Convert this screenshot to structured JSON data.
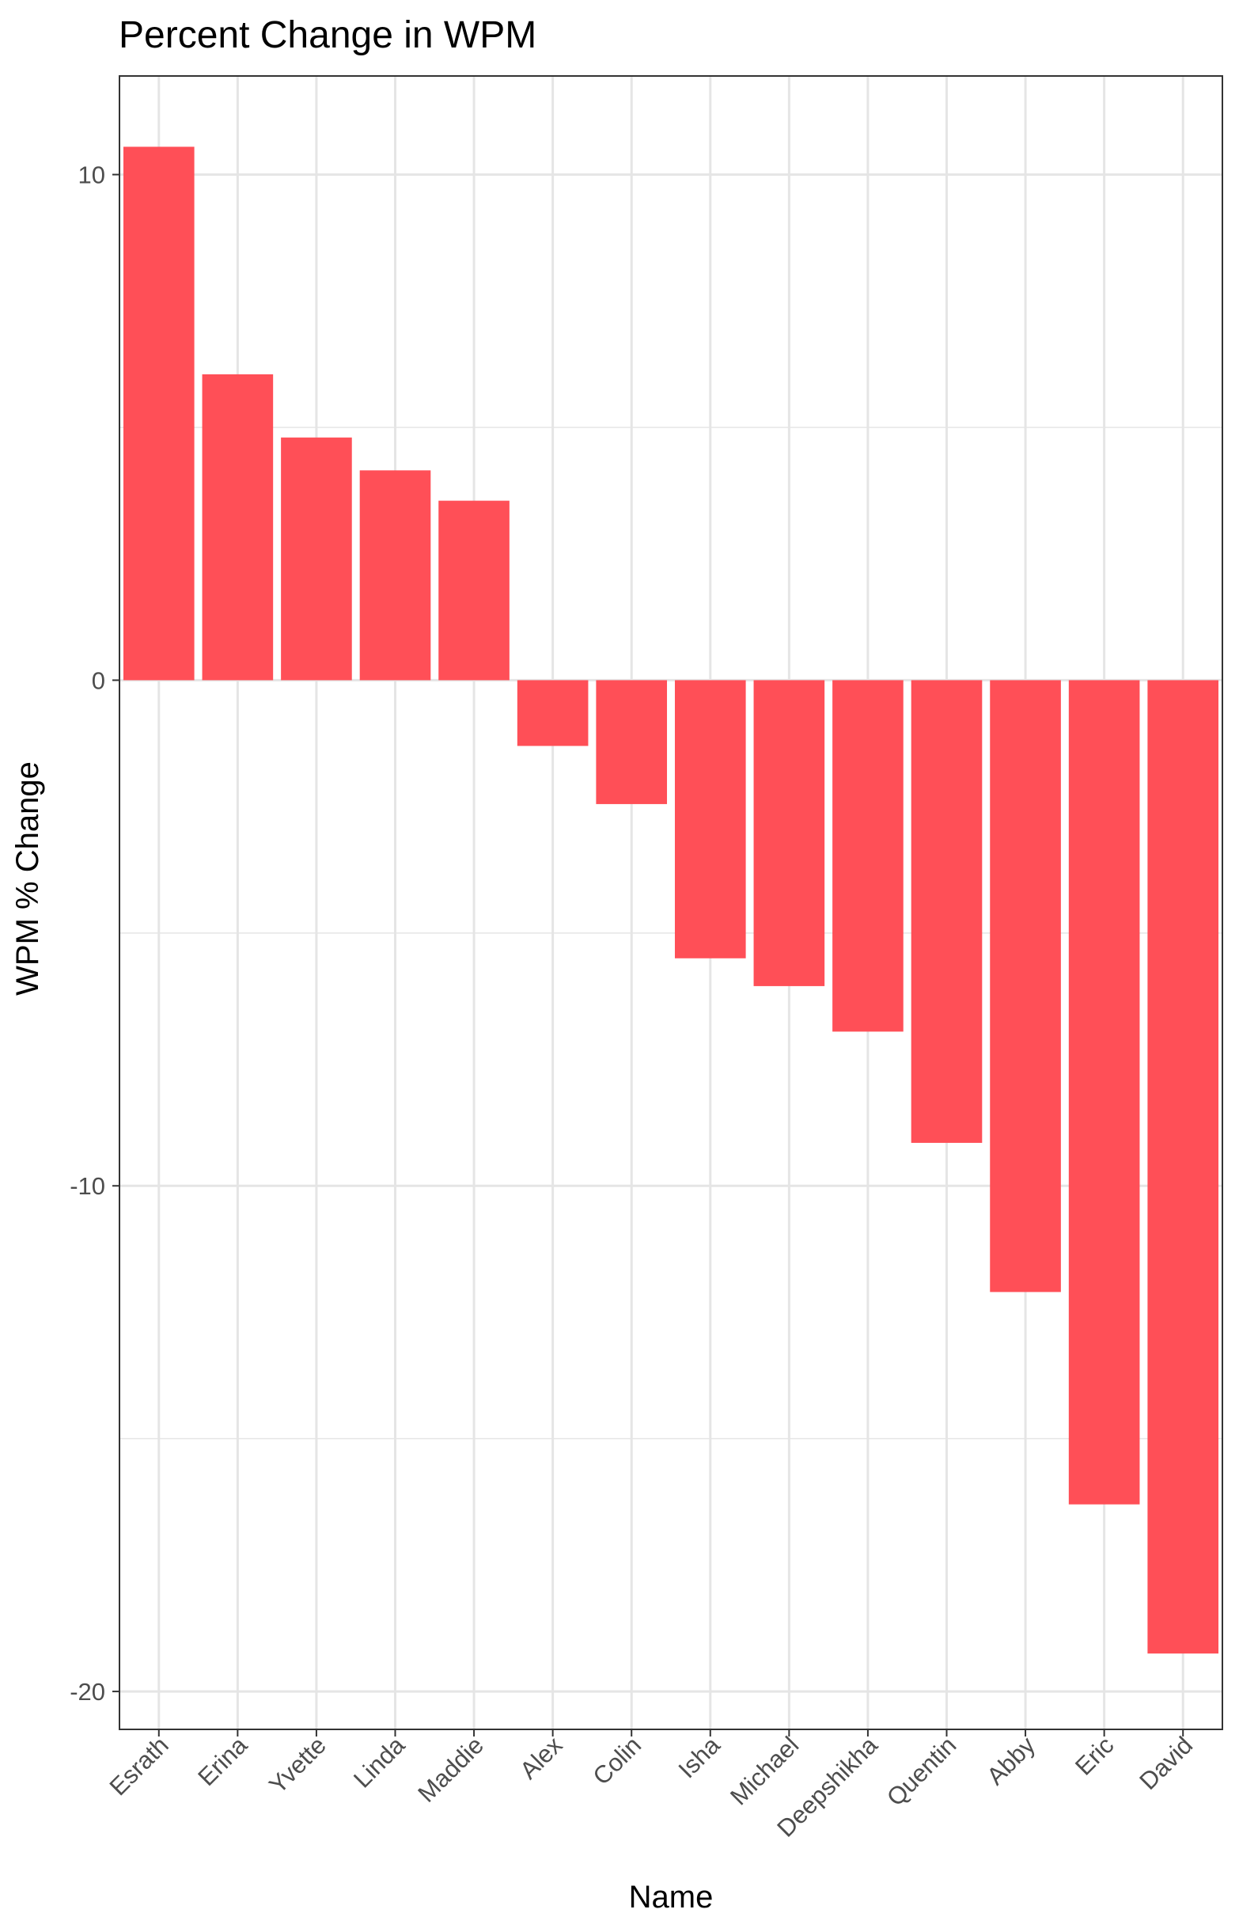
{
  "chart_data": {
    "type": "bar",
    "title": "Percent Change in WPM",
    "xlabel": "Name",
    "ylabel": "WPM % Change",
    "categories": [
      "Esrath",
      "Erina",
      "Yvette",
      "Linda",
      "Maddie",
      "Alex",
      "Colin",
      "Isha",
      "Michael",
      "Deepshikha",
      "Quentin",
      "Abby",
      "Eric",
      "David"
    ],
    "values": [
      10.55,
      6.05,
      4.8,
      4.15,
      3.55,
      -1.3,
      -2.45,
      -5.5,
      -6.05,
      -6.95,
      -9.15,
      -12.1,
      -16.3,
      -19.25
    ],
    "ylim": [
      -20.75,
      11.95
    ],
    "yticks": [
      10,
      0,
      -10,
      -20
    ],
    "ytick_labels": [
      "10",
      "0",
      "-10",
      "-20"
    ],
    "grid": true,
    "bar_color": "#ff4f57",
    "grid_color": "#e5e5e5"
  }
}
